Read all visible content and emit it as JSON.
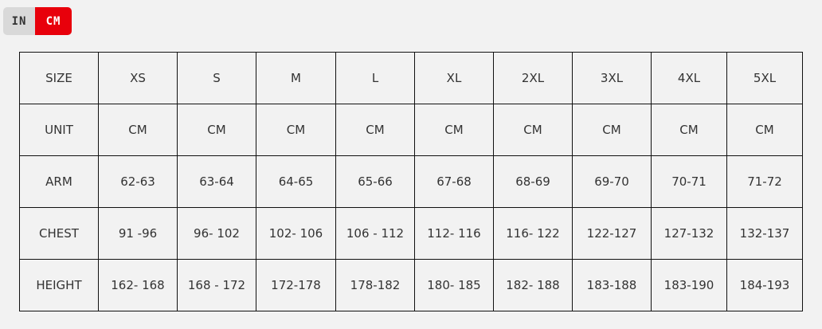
{
  "unit_toggle": {
    "options": [
      "IN",
      "CM"
    ],
    "selected": "CM",
    "active_color": "#e8000b"
  },
  "size_table": {
    "rows": [
      {
        "label": "SIZE",
        "values": [
          "XS",
          "S",
          "M",
          "L",
          "XL",
          "2XL",
          "3XL",
          "4XL",
          "5XL"
        ]
      },
      {
        "label": "UNIT",
        "values": [
          "CM",
          "CM",
          "CM",
          "CM",
          "CM",
          "CM",
          "CM",
          "CM",
          "CM"
        ]
      },
      {
        "label": "ARM",
        "values": [
          "62-63",
          "63-64",
          "64-65",
          "65-66",
          "67-68",
          "68-69",
          "69-70",
          "70-71",
          "71-72"
        ]
      },
      {
        "label": "CHEST",
        "values": [
          "91 -96",
          "96- 102",
          "102- 106",
          "106 - 112",
          "112- 116",
          "116- 122",
          "122-127",
          "127-132",
          "132-137"
        ]
      },
      {
        "label": "HEIGHT",
        "values": [
          "162- 168",
          "168 - 172",
          "172-178",
          "178-182",
          "180- 185",
          "182- 188",
          "183-188",
          "183-190",
          "184-193"
        ]
      }
    ]
  }
}
